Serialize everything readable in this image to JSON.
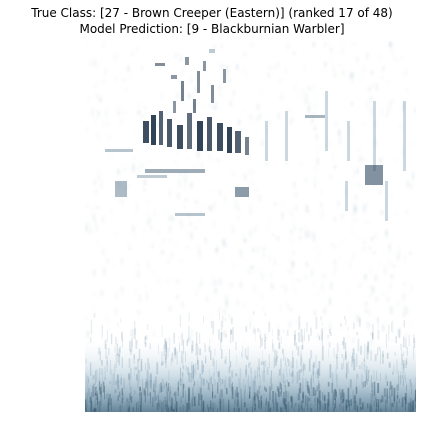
{
  "title_line1": "True Class: [27 - Brown Creeper (Eastern)] (ranked 17 of 48)",
  "title_line2": "Model Prediction: [9 - Blackburnian Warbler]",
  "colors": {
    "background": "#ffffff",
    "spectrogram_light": "#dfe8ee",
    "spectrogram_mid": "#6d8fa6",
    "spectrogram_dark": "#0b1a2a"
  }
}
